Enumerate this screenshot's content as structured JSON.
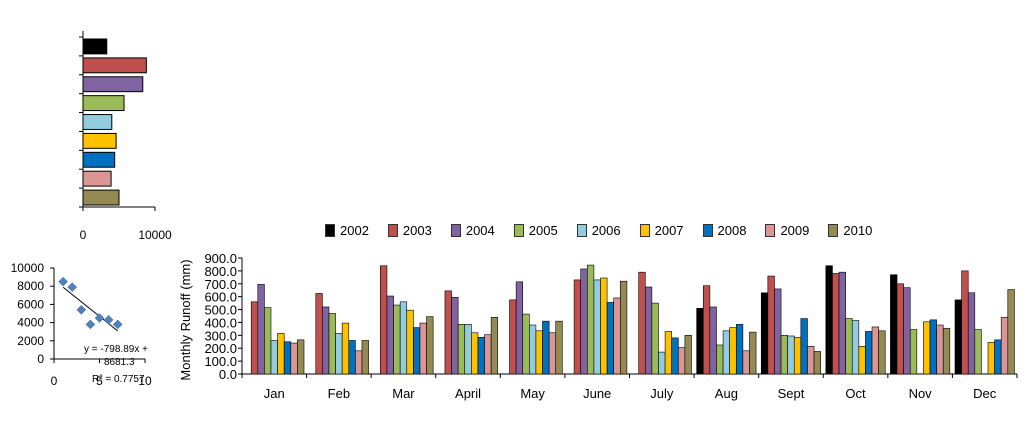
{
  "chart_data": [
    {
      "type": "bar",
      "orientation": "horizontal",
      "xlim": [
        0,
        10000
      ],
      "x_ticks": [
        "0",
        "10000"
      ],
      "values": [
        3300,
        8800,
        8300,
        5700,
        4000,
        4600,
        4400,
        3900,
        5000
      ],
      "colors": [
        "#000000",
        "#C0504D",
        "#8064A2",
        "#9BBB59",
        "#93CDDD",
        "#FFC000",
        "#0070C0",
        "#D99694",
        "#948A54"
      ]
    },
    {
      "type": "scatter",
      "xlim": [
        0,
        10
      ],
      "ylim": [
        0,
        10000
      ],
      "x_ticks": [
        "0",
        "5",
        "10"
      ],
      "y_ticks": [
        "0",
        "2000",
        "4000",
        "6000",
        "8000",
        "10000"
      ],
      "points": [
        {
          "x": 1,
          "y": 8500
        },
        {
          "x": 2,
          "y": 7900
        },
        {
          "x": 3,
          "y": 5400
        },
        {
          "x": 4,
          "y": 3800
        },
        {
          "x": 5,
          "y": 4500
        },
        {
          "x": 6,
          "y": 4300
        },
        {
          "x": 7,
          "y": 3800
        }
      ],
      "trendline": {
        "slope": -798.89,
        "intercept": 8681.3
      },
      "equation_line1": "y = -798.89x +",
      "equation_line2": "8681.3",
      "r2_label": "R² = 0.7757",
      "marker_color": "#4F81BD"
    },
    {
      "type": "bar",
      "ylabel": "Monthly  Runoff (mm)",
      "ylim": [
        0,
        900
      ],
      "y_ticks": [
        "0.0",
        "100.0",
        "200.0",
        "300.0",
        "400.0",
        "500.0",
        "600.0",
        "700.0",
        "800.0",
        "900.0"
      ],
      "categories": [
        "Jan",
        "Feb",
        "Mar",
        "April",
        "May",
        "June",
        "July",
        "Aug",
        "Sept",
        "Oct",
        "Nov",
        "Dec"
      ],
      "series": [
        {
          "name": "2002",
          "color": "#000000",
          "values": [
            0,
            0,
            0,
            0,
            0,
            0,
            0,
            510,
            630,
            840,
            770,
            575
          ]
        },
        {
          "name": "2003",
          "color": "#C0504D",
          "values": [
            560,
            625,
            840,
            645,
            575,
            730,
            790,
            685,
            760,
            780,
            700,
            800
          ]
        },
        {
          "name": "2004",
          "color": "#8064A2",
          "values": [
            695,
            520,
            605,
            595,
            715,
            815,
            675,
            520,
            660,
            790,
            670,
            630
          ]
        },
        {
          "name": "2005",
          "color": "#9BBB59",
          "values": [
            515,
            470,
            535,
            385,
            465,
            845,
            550,
            225,
            300,
            430,
            345,
            345
          ]
        },
        {
          "name": "2006",
          "color": "#93CDDD",
          "values": [
            260,
            315,
            560,
            385,
            380,
            730,
            170,
            335,
            295,
            415,
            0,
            0
          ]
        },
        {
          "name": "2007",
          "color": "#FFC000",
          "values": [
            315,
            395,
            495,
            320,
            335,
            745,
            330,
            360,
            285,
            215,
            405,
            245
          ]
        },
        {
          "name": "2008",
          "color": "#0070C0",
          "values": [
            250,
            260,
            360,
            285,
            410,
            555,
            280,
            385,
            430,
            330,
            420,
            265
          ]
        },
        {
          "name": "2009",
          "color": "#D99694",
          "values": [
            240,
            180,
            395,
            305,
            320,
            590,
            205,
            180,
            215,
            365,
            380,
            440
          ]
        },
        {
          "name": "2010",
          "color": "#948A54",
          "values": [
            265,
            260,
            445,
            440,
            410,
            720,
            300,
            325,
            175,
            335,
            355,
            655
          ]
        }
      ]
    }
  ]
}
